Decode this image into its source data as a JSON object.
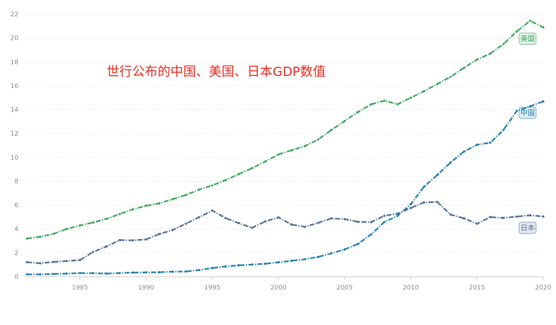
{
  "overlay_text": "世行公布的中国、美国、日本GDP数值",
  "chart_data": {
    "type": "line",
    "title": "",
    "xlabel": "",
    "ylabel": "",
    "xlim": [
      1981,
      2020
    ],
    "ylim": [
      0,
      22
    ],
    "y_ticks": [
      0,
      2,
      4,
      6,
      8,
      10,
      12,
      14,
      16,
      18,
      20,
      22
    ],
    "x_ticks": [
      1985,
      1990,
      1995,
      2000,
      2005,
      2010,
      2015,
      2020
    ],
    "grid": true,
    "x": [
      1981,
      1982,
      1983,
      1984,
      1985,
      1986,
      1987,
      1988,
      1989,
      1990,
      1991,
      1992,
      1993,
      1994,
      1995,
      1996,
      1997,
      1998,
      1999,
      2000,
      2001,
      2002,
      2003,
      2004,
      2005,
      2006,
      2007,
      2008,
      2009,
      2010,
      2011,
      2012,
      2013,
      2014,
      2015,
      2016,
      2017,
      2018,
      2019,
      2020
    ],
    "series": [
      {
        "name": "美国",
        "color": "#3aa55d",
        "values": [
          3.2,
          3.35,
          3.6,
          4.0,
          4.3,
          4.55,
          4.85,
          5.25,
          5.65,
          5.95,
          6.15,
          6.5,
          6.85,
          7.3,
          7.65,
          8.1,
          8.6,
          9.1,
          9.65,
          10.25,
          10.6,
          10.95,
          11.5,
          12.3,
          13.05,
          13.8,
          14.45,
          14.75,
          14.45,
          15.0,
          15.55,
          16.15,
          16.75,
          17.5,
          18.2,
          18.7,
          19.5,
          20.55,
          21.45,
          20.9
        ]
      },
      {
        "name": "中国",
        "color": "#1f7fad",
        "values": [
          0.2,
          0.2,
          0.23,
          0.26,
          0.31,
          0.3,
          0.27,
          0.31,
          0.35,
          0.36,
          0.38,
          0.42,
          0.44,
          0.56,
          0.73,
          0.86,
          0.96,
          1.02,
          1.09,
          1.21,
          1.34,
          1.47,
          1.66,
          1.96,
          2.29,
          2.75,
          3.55,
          4.59,
          5.1,
          6.09,
          7.55,
          8.53,
          9.57,
          10.48,
          11.06,
          11.23,
          12.31,
          13.89,
          14.28,
          14.69
        ]
      },
      {
        "name": "日本",
        "color": "#4f6d94",
        "values": [
          1.22,
          1.13,
          1.24,
          1.32,
          1.4,
          2.08,
          2.53,
          3.07,
          3.05,
          3.13,
          3.58,
          3.91,
          4.45,
          4.99,
          5.55,
          4.92,
          4.49,
          4.1,
          4.64,
          4.97,
          4.37,
          4.18,
          4.52,
          4.89,
          4.83,
          4.6,
          4.58,
          5.11,
          5.29,
          5.76,
          6.23,
          6.27,
          5.21,
          4.9,
          4.44,
          5.0,
          4.93,
          5.04,
          5.15,
          5.05
        ]
      }
    ]
  }
}
